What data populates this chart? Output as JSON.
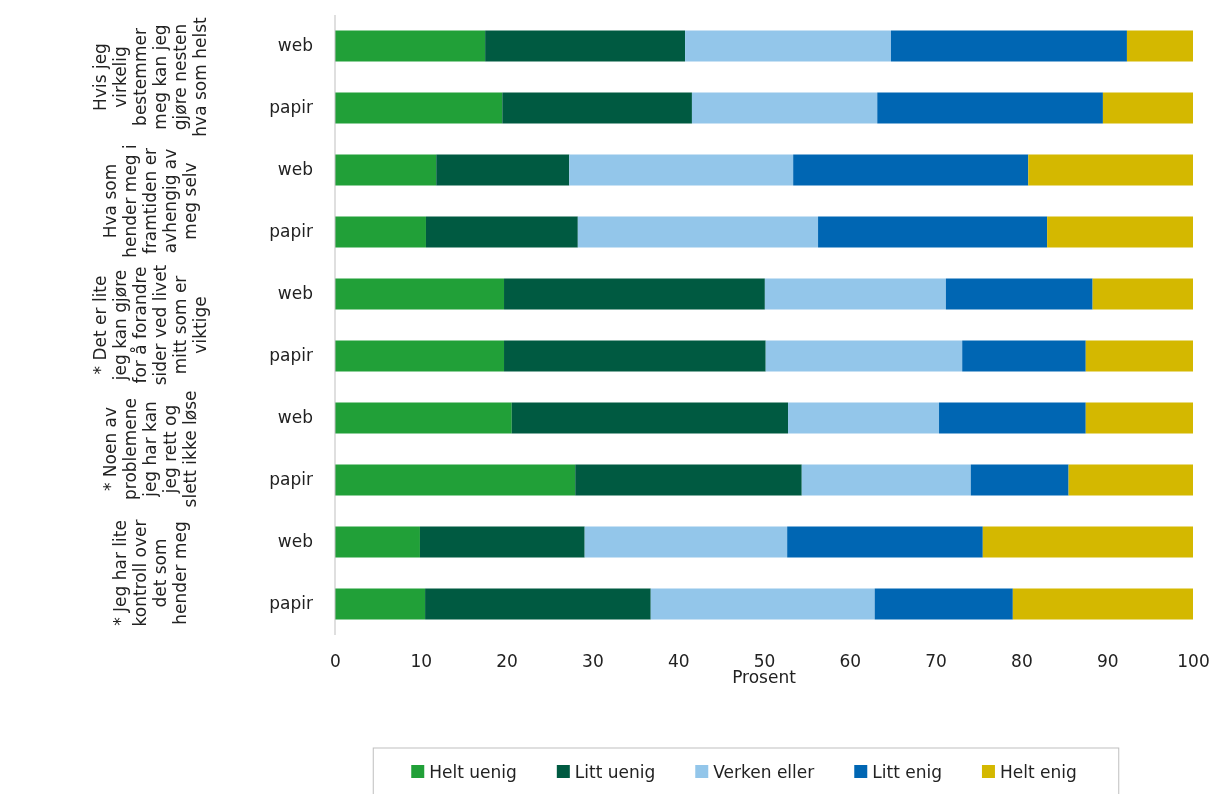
{
  "chart_data": {
    "type": "bar",
    "orientation": "horizontal",
    "stacked": true,
    "categories": [
      "web",
      "papir",
      "web",
      "papir",
      "web",
      "papir",
      "web",
      "papir",
      "web",
      "papir"
    ],
    "annotations": [
      "Hvis jeg virkelig bestemmer meg kan jeg gjøre nesten hva som helst",
      "Hva som hender meg i framtiden er avhengig av meg selv",
      "* Det er lite jeg kan gjøre for å forandre sider ved livet mitt som er viktige",
      "* Noen av problemene jeg har kan jeg rett og slett ikke løse",
      "* Jeg har lite kontroll over det som hender meg"
    ],
    "series": [
      {
        "name": "Helt uenig",
        "color": "#21a038",
        "values": [
          17.5,
          19.5,
          11.8,
          10.6,
          19.7,
          19.7,
          20.6,
          28.0,
          9.9,
          10.5
        ]
      },
      {
        "name": "Litt uenig",
        "color": "#005a41",
        "values": [
          23.3,
          22.1,
          15.5,
          17.7,
          30.4,
          30.5,
          32.2,
          26.4,
          19.2,
          26.3
        ]
      },
      {
        "name": "Verken eller",
        "color": "#93c6ea",
        "values": [
          24.0,
          21.6,
          26.1,
          28.0,
          21.1,
          22.9,
          17.6,
          19.7,
          23.6,
          26.1
        ]
      },
      {
        "name": "Litt enig",
        "color": "#0066b3",
        "values": [
          27.5,
          26.3,
          27.4,
          26.7,
          17.1,
          14.4,
          17.1,
          11.4,
          22.8,
          16.1
        ]
      },
      {
        "name": "Helt enig",
        "color": "#d4b800",
        "values": [
          7.7,
          10.5,
          19.2,
          17.0,
          11.7,
          12.5,
          12.5,
          14.5,
          24.5,
          21.0
        ]
      }
    ],
    "xlim": [
      0,
      100
    ],
    "xticks": [
      0,
      10,
      20,
      30,
      40,
      50,
      60,
      70,
      80,
      90,
      100
    ],
    "xlabel": "Prosent",
    "legend": "bottom",
    "grid": false
  }
}
